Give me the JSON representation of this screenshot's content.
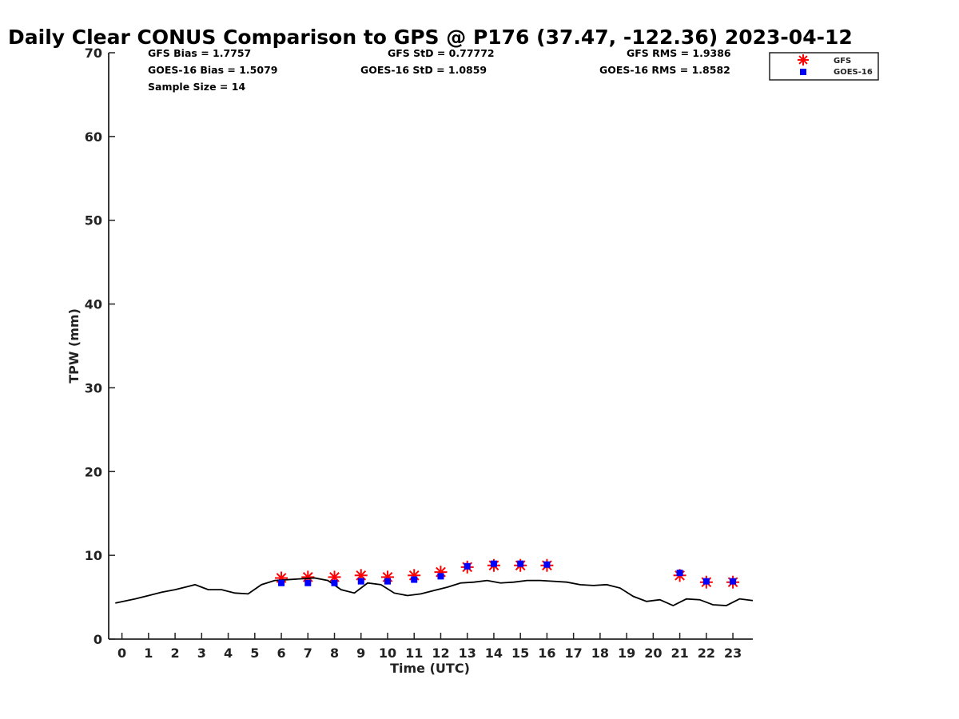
{
  "chart_data": {
    "type": "scatter",
    "title": "Daily Clear CONUS Comparison to GPS @ P176 (37.47, -122.36) 2023-04-12",
    "xlabel": "Time (UTC)",
    "ylabel": "TPW (mm)",
    "xlim": [
      -0.5,
      23.75
    ],
    "ylim": [
      0,
      70
    ],
    "xticks": [
      0,
      1,
      2,
      3,
      4,
      5,
      6,
      7,
      8,
      9,
      10,
      11,
      12,
      13,
      14,
      15,
      16,
      17,
      18,
      19,
      20,
      21,
      22,
      23
    ],
    "yticks": [
      0,
      10,
      20,
      30,
      40,
      50,
      60,
      70
    ],
    "grid": false,
    "legend_position": "top-right",
    "stats": {
      "gfs_bias": "GFS Bias = 1.7757",
      "gfs_std": "GFS StD = 0.77772",
      "gfs_rms": "GFS RMS = 1.9386",
      "goes_bias": "GOES-16 Bias = 1.5079",
      "goes_std": "GOES-16 StD = 1.0859",
      "goes_rms": "GOES-16 RMS = 1.8582",
      "sample_size": "Sample Size = 14"
    },
    "series": [
      {
        "name": "GFS",
        "marker": "asterisk",
        "color": "#ff0000",
        "x": [
          6,
          7,
          8,
          9,
          10,
          11,
          12,
          13,
          14,
          15,
          16,
          21,
          22,
          23
        ],
        "y": [
          7.3,
          7.4,
          7.4,
          7.6,
          7.4,
          7.6,
          8.0,
          8.6,
          8.8,
          8.8,
          8.8,
          7.6,
          6.8,
          6.8
        ]
      },
      {
        "name": "GOES-16",
        "marker": "square",
        "color": "#0000ff",
        "x": [
          6,
          7,
          8,
          9,
          10,
          11,
          12,
          13,
          14,
          15,
          16,
          21,
          22,
          23
        ],
        "y": [
          6.7,
          6.7,
          6.7,
          6.9,
          6.9,
          7.1,
          7.5,
          8.7,
          9.0,
          9.0,
          8.9,
          7.9,
          6.9,
          6.9
        ]
      },
      {
        "marker": "line",
        "color": "#000000",
        "x": [
          -0.25,
          0.5,
          1.0,
          1.5,
          2.0,
          2.5,
          2.75,
          3.25,
          3.75,
          4.25,
          4.75,
          5.25,
          5.75,
          6.25,
          6.75,
          7.25,
          7.75,
          8.25,
          8.75,
          9.25,
          9.75,
          10.25,
          10.75,
          11.25,
          11.75,
          12.25,
          12.75,
          13.25,
          13.75,
          14.25,
          14.75,
          15.25,
          15.75,
          16.25,
          16.75,
          17.25,
          17.75,
          18.25,
          18.75,
          19.25,
          19.75,
          20.25,
          20.75,
          21.25,
          21.75,
          22.25,
          22.75,
          23.25,
          23.75
        ],
        "y": [
          4.3,
          4.8,
          5.2,
          5.6,
          5.9,
          6.3,
          6.5,
          5.9,
          5.9,
          5.5,
          5.4,
          6.5,
          7.0,
          7.1,
          7.2,
          7.3,
          7.0,
          5.9,
          5.5,
          6.7,
          6.5,
          5.5,
          5.2,
          5.4,
          5.8,
          6.2,
          6.7,
          6.8,
          7.0,
          6.7,
          6.8,
          7.0,
          7.0,
          6.9,
          6.8,
          6.5,
          6.4,
          6.5,
          6.1,
          5.1,
          4.5,
          4.7,
          4.0,
          4.8,
          4.7,
          4.1,
          4.0,
          4.8,
          4.6
        ]
      }
    ]
  }
}
